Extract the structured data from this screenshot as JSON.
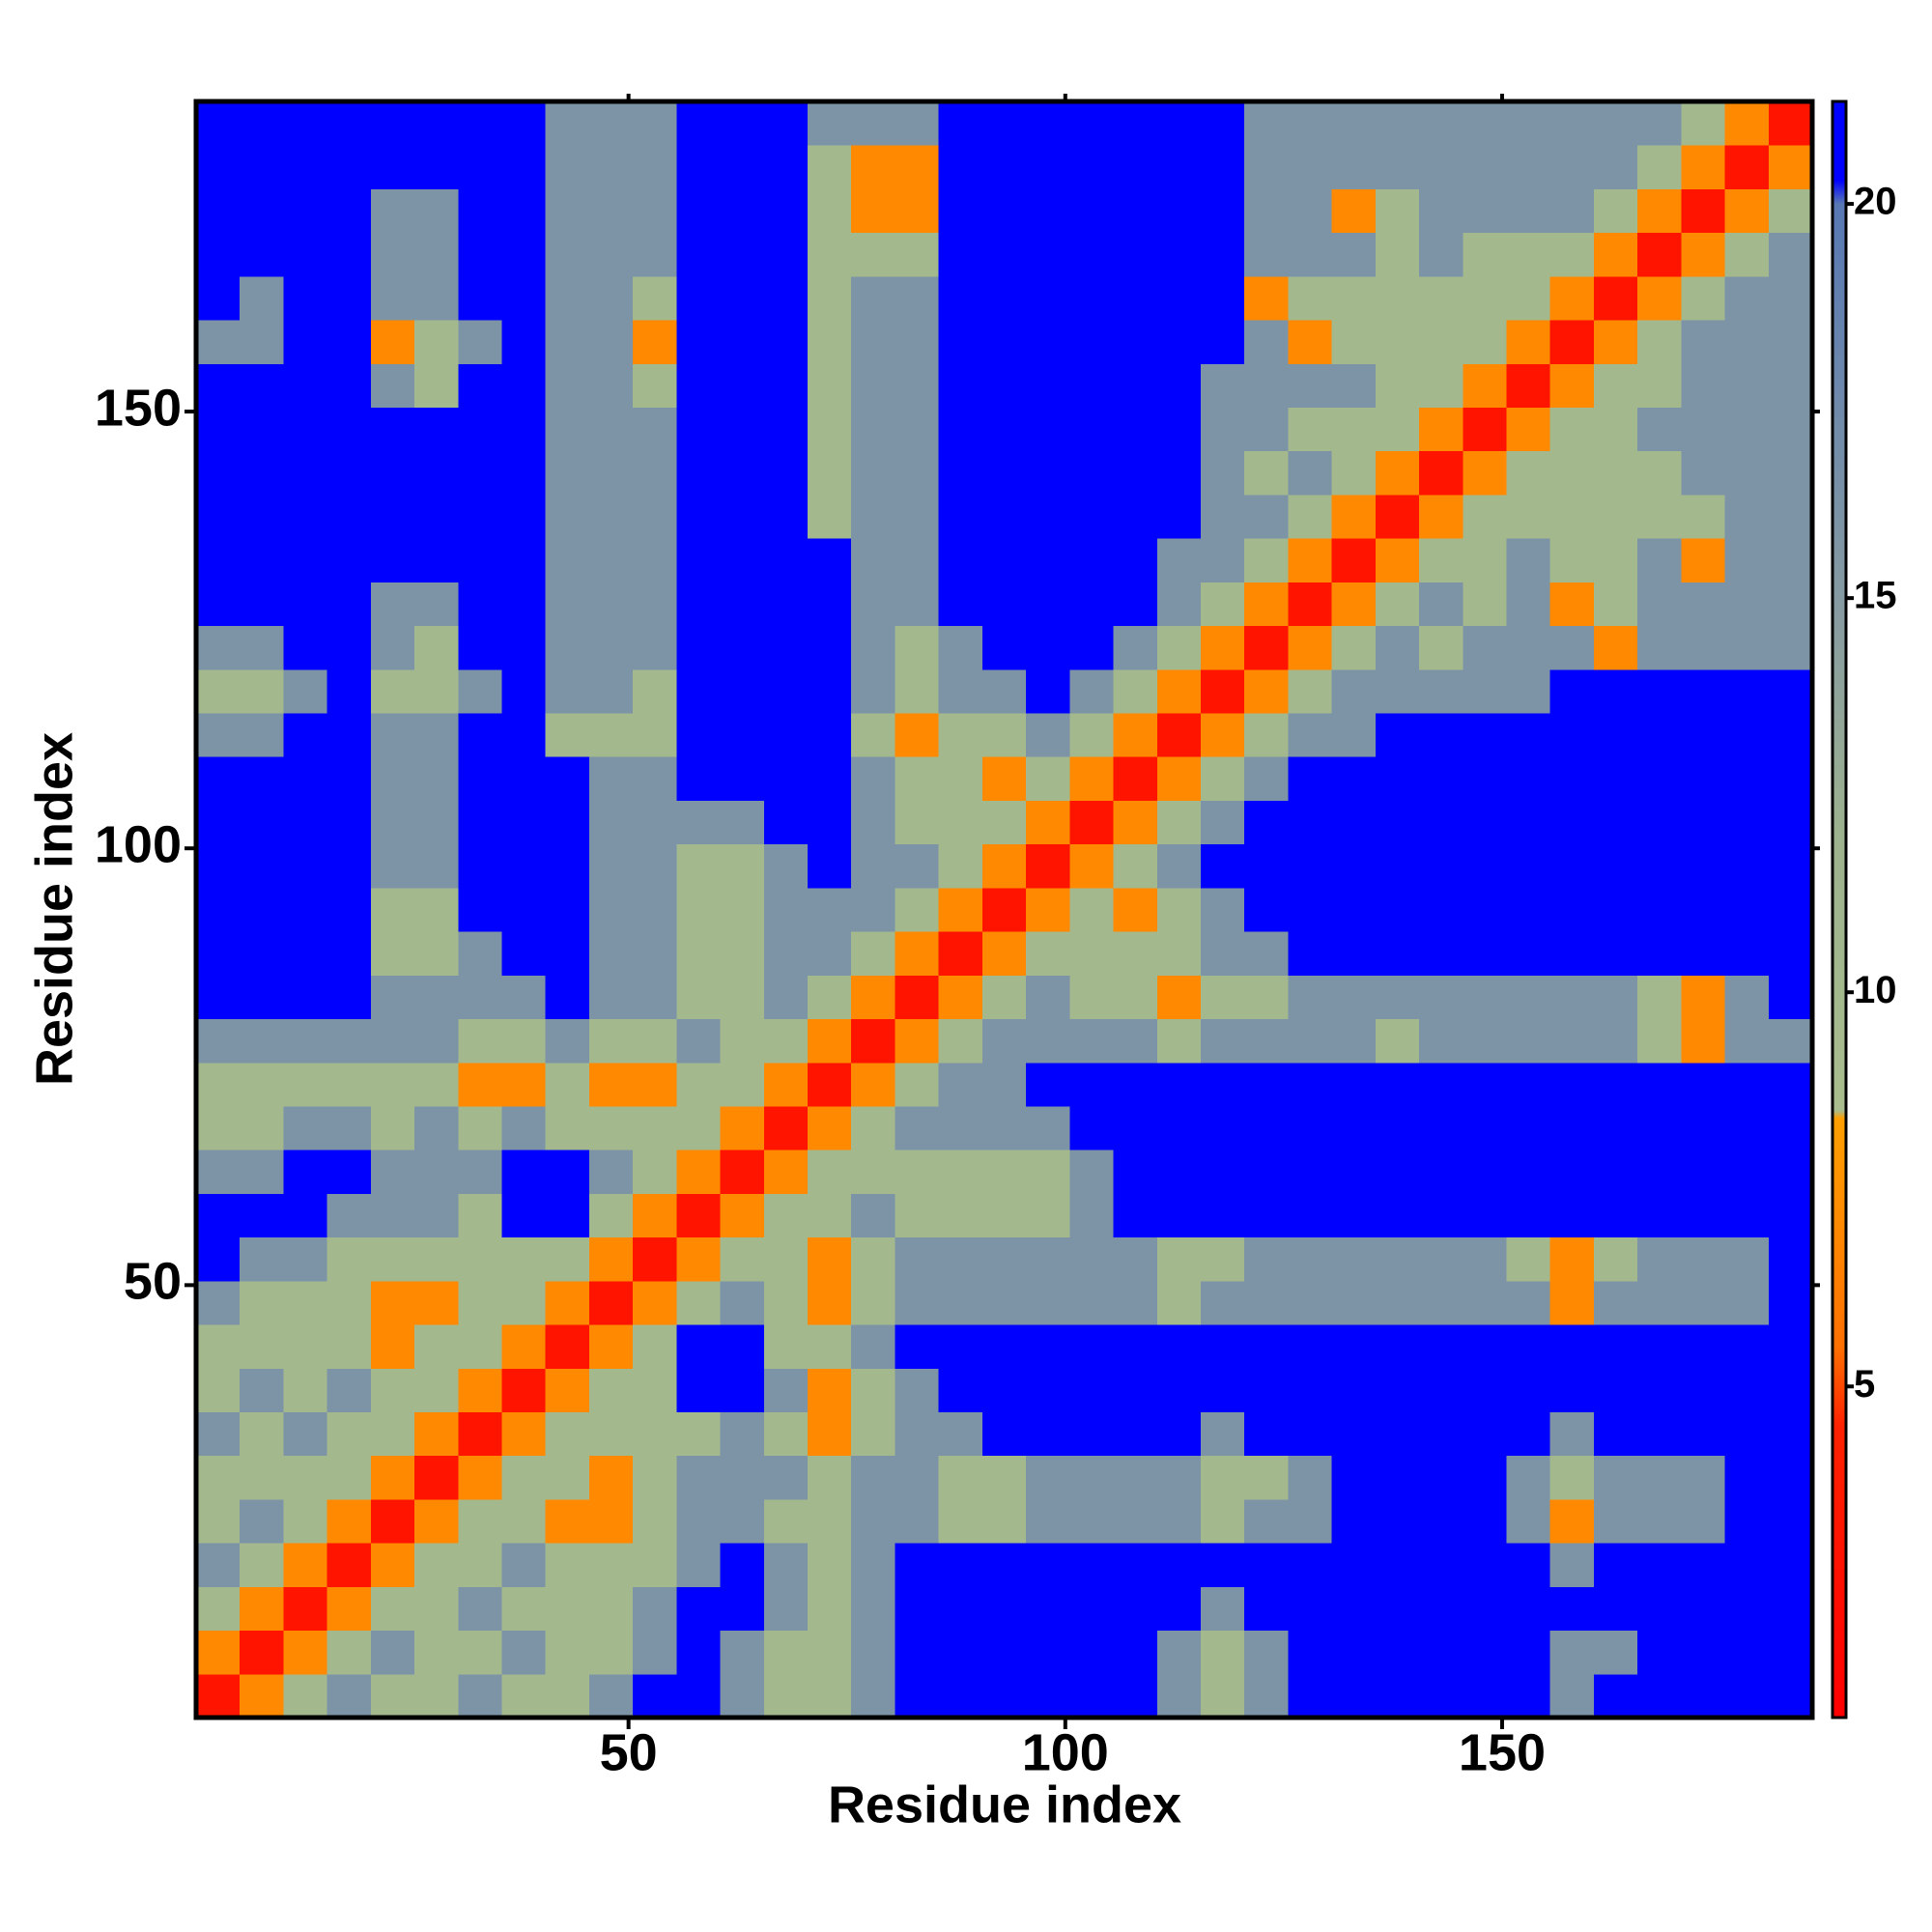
{
  "chart_data": {
    "type": "heatmap",
    "xlabel": "Residue index",
    "ylabel": "Residue index",
    "x": [
      3,
      8,
      13,
      18,
      23,
      28,
      33,
      38,
      43,
      48,
      53,
      58,
      63,
      68,
      73,
      78,
      83,
      88,
      93,
      98,
      103,
      108,
      113,
      118,
      123,
      128,
      133,
      138,
      143,
      148,
      153,
      158,
      163,
      168,
      173,
      178,
      183
    ],
    "y": [
      3,
      8,
      13,
      18,
      23,
      28,
      33,
      38,
      43,
      48,
      53,
      58,
      63,
      68,
      73,
      78,
      83,
      88,
      93,
      98,
      103,
      108,
      113,
      118,
      123,
      128,
      133,
      138,
      143,
      148,
      153,
      158,
      163,
      168,
      173,
      178,
      183
    ],
    "xlim": [
      0.5,
      185.5
    ],
    "ylim": [
      0.5,
      185.5
    ],
    "xticks": [
      50,
      100,
      150
    ],
    "yticks": [
      50,
      100,
      150
    ],
    "zlim": [
      0.8,
      21.3
    ],
    "zticks": [
      5,
      10,
      15,
      20
    ],
    "colorscale": [
      [
        0.8,
        "#ff0000"
      ],
      [
        4.5,
        "#ff2200"
      ],
      [
        5.5,
        "#ff7000"
      ],
      [
        8.4,
        "#ffa000"
      ],
      [
        8.5,
        "#a9bd8e"
      ],
      [
        12,
        "#9db28e"
      ],
      [
        14.5,
        "#8a9ea0"
      ],
      [
        20,
        "#5878b4"
      ],
      [
        20.3,
        "#0000ff"
      ],
      [
        21.3,
        "#0000ff"
      ]
    ],
    "z": [
      [
        3,
        7,
        10,
        16,
        10,
        10,
        16,
        10,
        10,
        16,
        21,
        21,
        16,
        10,
        10,
        16,
        21,
        21,
        21,
        21,
        21,
        21,
        16,
        10,
        16,
        21,
        21,
        21,
        21,
        21,
        21,
        16,
        21,
        21,
        21,
        21,
        21
      ],
      [
        7,
        3,
        7,
        10,
        16,
        10,
        10,
        16,
        10,
        10,
        16,
        21,
        16,
        10,
        10,
        16,
        21,
        21,
        21,
        21,
        21,
        21,
        16,
        10,
        16,
        21,
        21,
        21,
        21,
        21,
        21,
        16,
        16,
        21,
        21,
        21,
        21
      ],
      [
        10,
        7,
        3,
        7,
        10,
        10,
        16,
        10,
        10,
        10,
        16,
        21,
        21,
        16,
        10,
        16,
        21,
        21,
        21,
        21,
        21,
        21,
        21,
        16,
        21,
        21,
        21,
        21,
        21,
        21,
        21,
        21,
        21,
        21,
        21,
        21,
        21
      ],
      [
        16,
        10,
        7,
        3,
        7,
        10,
        10,
        16,
        10,
        10,
        10,
        16,
        21,
        16,
        10,
        16,
        21,
        21,
        21,
        21,
        21,
        21,
        21,
        21,
        21,
        21,
        21,
        21,
        21,
        21,
        21,
        16,
        21,
        21,
        21,
        21,
        21
      ],
      [
        10,
        16,
        10,
        7,
        3,
        7,
        10,
        10,
        7,
        7,
        10,
        16,
        16,
        10,
        10,
        16,
        16,
        10,
        10,
        16,
        16,
        16,
        16,
        10,
        16,
        16,
        21,
        21,
        21,
        21,
        16,
        7,
        16,
        16,
        16,
        21,
        21
      ],
      [
        10,
        10,
        10,
        10,
        7,
        3,
        7,
        10,
        10,
        7,
        10,
        16,
        16,
        16,
        10,
        16,
        16,
        10,
        10,
        16,
        16,
        16,
        16,
        10,
        10,
        16,
        21,
        21,
        21,
        21,
        16,
        10,
        16,
        16,
        16,
        21,
        21
      ],
      [
        16,
        10,
        16,
        10,
        10,
        7,
        3,
        7,
        10,
        10,
        10,
        10,
        16,
        10,
        7,
        10,
        16,
        16,
        21,
        21,
        21,
        21,
        21,
        16,
        21,
        21,
        21,
        21,
        21,
        21,
        21,
        16,
        21,
        21,
        21,
        21,
        21
      ],
      [
        10,
        16,
        10,
        16,
        10,
        10,
        7,
        3,
        7,
        10,
        10,
        21,
        21,
        16,
        7,
        10,
        16,
        21,
        21,
        21,
        21,
        21,
        21,
        21,
        21,
        21,
        21,
        21,
        21,
        21,
        21,
        21,
        21,
        21,
        21,
        21,
        21
      ],
      [
        10,
        10,
        10,
        10,
        7,
        10,
        10,
        7,
        3,
        7,
        10,
        21,
        21,
        10,
        10,
        16,
        21,
        21,
        21,
        21,
        21,
        21,
        21,
        21,
        21,
        21,
        21,
        21,
        21,
        21,
        21,
        21,
        21,
        21,
        21,
        21,
        21
      ],
      [
        16,
        10,
        10,
        10,
        7,
        7,
        10,
        10,
        7,
        3,
        7,
        10,
        16,
        10,
        7,
        10,
        16,
        16,
        16,
        16,
        16,
        16,
        10,
        16,
        16,
        16,
        16,
        16,
        16,
        16,
        16,
        7,
        16,
        16,
        16,
        16,
        21
      ],
      [
        21,
        16,
        16,
        10,
        10,
        10,
        10,
        10,
        10,
        7,
        3,
        7,
        10,
        10,
        7,
        10,
        16,
        16,
        16,
        16,
        16,
        16,
        10,
        10,
        16,
        16,
        16,
        16,
        16,
        16,
        10,
        7,
        10,
        16,
        16,
        16,
        21
      ],
      [
        21,
        21,
        21,
        16,
        16,
        16,
        10,
        21,
        21,
        10,
        7,
        3,
        7,
        10,
        10,
        16,
        10,
        10,
        10,
        10,
        16,
        21,
        21,
        21,
        21,
        21,
        21,
        21,
        21,
        21,
        21,
        21,
        21,
        21,
        21,
        21,
        21
      ],
      [
        16,
        16,
        21,
        21,
        16,
        16,
        16,
        21,
        21,
        16,
        10,
        7,
        3,
        7,
        10,
        10,
        10,
        10,
        10,
        10,
        16,
        21,
        21,
        21,
        21,
        21,
        21,
        21,
        21,
        21,
        21,
        21,
        21,
        21,
        21,
        21,
        21
      ],
      [
        10,
        10,
        16,
        16,
        10,
        16,
        10,
        16,
        10,
        10,
        10,
        10,
        7,
        3,
        7,
        10,
        16,
        16,
        16,
        16,
        21,
        21,
        21,
        21,
        21,
        21,
        21,
        21,
        21,
        21,
        21,
        21,
        21,
        21,
        21,
        21,
        21
      ],
      [
        10,
        10,
        10,
        10,
        10,
        10,
        7,
        7,
        10,
        7,
        7,
        10,
        10,
        7,
        3,
        7,
        10,
        16,
        16,
        21,
        21,
        21,
        21,
        21,
        21,
        21,
        21,
        21,
        21,
        21,
        21,
        21,
        21,
        21,
        21,
        21,
        21
      ],
      [
        16,
        16,
        16,
        16,
        16,
        16,
        10,
        10,
        16,
        10,
        10,
        16,
        10,
        10,
        7,
        3,
        7,
        10,
        16,
        16,
        16,
        16,
        10,
        16,
        16,
        16,
        16,
        10,
        16,
        16,
        16,
        16,
        16,
        10,
        7,
        16,
        16
      ],
      [
        21,
        21,
        21,
        21,
        16,
        16,
        16,
        16,
        21,
        16,
        16,
        10,
        10,
        16,
        10,
        7,
        3,
        7,
        10,
        16,
        10,
        10,
        7,
        10,
        10,
        16,
        16,
        16,
        16,
        16,
        16,
        16,
        16,
        10,
        7,
        16,
        21
      ],
      [
        21,
        21,
        21,
        21,
        10,
        10,
        16,
        21,
        21,
        16,
        16,
        10,
        10,
        16,
        16,
        10,
        7,
        3,
        7,
        10,
        10,
        10,
        10,
        16,
        16,
        21,
        21,
        21,
        21,
        21,
        21,
        21,
        21,
        21,
        21,
        21,
        21
      ],
      [
        21,
        21,
        21,
        21,
        10,
        10,
        21,
        21,
        21,
        16,
        16,
        10,
        10,
        16,
        16,
        16,
        10,
        7,
        3,
        7,
        10,
        7,
        10,
        16,
        21,
        21,
        21,
        21,
        21,
        21,
        21,
        21,
        21,
        21,
        21,
        21,
        21
      ],
      [
        21,
        21,
        21,
        21,
        16,
        16,
        21,
        21,
        21,
        16,
        16,
        10,
        10,
        16,
        21,
        16,
        16,
        10,
        7,
        3,
        7,
        10,
        16,
        21,
        21,
        21,
        21,
        21,
        21,
        21,
        21,
        21,
        21,
        21,
        21,
        21,
        21
      ],
      [
        21,
        21,
        21,
        21,
        16,
        16,
        21,
        21,
        21,
        16,
        16,
        16,
        16,
        21,
        21,
        16,
        10,
        10,
        10,
        7,
        3,
        7,
        10,
        16,
        21,
        21,
        21,
        21,
        21,
        21,
        21,
        21,
        21,
        21,
        21,
        21,
        21
      ],
      [
        21,
        21,
        21,
        21,
        16,
        16,
        21,
        21,
        21,
        16,
        16,
        21,
        21,
        21,
        21,
        16,
        10,
        10,
        7,
        10,
        7,
        3,
        7,
        10,
        16,
        21,
        21,
        21,
        21,
        21,
        21,
        21,
        21,
        21,
        21,
        21,
        21
      ],
      [
        16,
        16,
        21,
        21,
        16,
        16,
        21,
        21,
        10,
        10,
        10,
        21,
        21,
        21,
        21,
        10,
        7,
        10,
        10,
        16,
        10,
        7,
        3,
        7,
        10,
        16,
        16,
        21,
        21,
        21,
        21,
        21,
        21,
        21,
        21,
        21,
        21
      ],
      [
        10,
        10,
        16,
        21,
        10,
        10,
        16,
        21,
        16,
        16,
        10,
        21,
        21,
        21,
        21,
        16,
        10,
        16,
        16,
        21,
        16,
        10,
        7,
        3,
        7,
        10,
        16,
        16,
        16,
        16,
        16,
        21,
        21,
        21,
        21,
        21,
        21
      ],
      [
        16,
        16,
        21,
        21,
        16,
        10,
        21,
        21,
        16,
        16,
        16,
        21,
        21,
        21,
        21,
        16,
        10,
        16,
        21,
        21,
        21,
        16,
        10,
        7,
        3,
        7,
        10,
        16,
        10,
        16,
        16,
        16,
        7,
        16,
        16,
        16,
        16
      ],
      [
        21,
        21,
        21,
        21,
        16,
        16,
        21,
        21,
        16,
        16,
        16,
        21,
        21,
        21,
        21,
        16,
        16,
        21,
        21,
        21,
        21,
        21,
        16,
        10,
        7,
        3,
        7,
        10,
        16,
        10,
        16,
        7,
        10,
        16,
        16,
        16,
        16
      ],
      [
        21,
        21,
        21,
        21,
        21,
        21,
        21,
        21,
        16,
        16,
        16,
        21,
        21,
        21,
        21,
        16,
        16,
        21,
        21,
        21,
        21,
        21,
        16,
        16,
        10,
        7,
        3,
        7,
        10,
        10,
        16,
        10,
        10,
        16,
        7,
        16,
        16
      ],
      [
        21,
        21,
        21,
        21,
        21,
        21,
        21,
        21,
        16,
        16,
        16,
        21,
        21,
        21,
        10,
        16,
        16,
        21,
        21,
        21,
        21,
        21,
        21,
        16,
        16,
        10,
        7,
        3,
        7,
        10,
        10,
        10,
        10,
        10,
        10,
        16,
        16
      ],
      [
        21,
        21,
        21,
        21,
        21,
        21,
        21,
        21,
        16,
        16,
        16,
        21,
        21,
        21,
        10,
        16,
        16,
        21,
        21,
        21,
        21,
        21,
        21,
        16,
        10,
        16,
        10,
        7,
        3,
        7,
        10,
        10,
        10,
        10,
        16,
        16,
        16
      ],
      [
        21,
        21,
        21,
        21,
        21,
        21,
        21,
        21,
        16,
        16,
        16,
        21,
        21,
        21,
        10,
        16,
        16,
        21,
        21,
        21,
        21,
        21,
        21,
        16,
        16,
        10,
        10,
        10,
        7,
        3,
        7,
        10,
        10,
        16,
        16,
        16,
        16
      ],
      [
        21,
        21,
        21,
        21,
        16,
        10,
        21,
        21,
        16,
        16,
        10,
        21,
        21,
        21,
        10,
        16,
        16,
        21,
        21,
        21,
        21,
        21,
        21,
        16,
        16,
        16,
        16,
        10,
        10,
        7,
        3,
        7,
        10,
        10,
        16,
        16,
        16
      ],
      [
        16,
        16,
        21,
        21,
        7,
        10,
        16,
        21,
        16,
        16,
        7,
        21,
        21,
        21,
        10,
        16,
        16,
        21,
        21,
        21,
        21,
        21,
        21,
        21,
        16,
        7,
        10,
        10,
        10,
        10,
        7,
        3,
        7,
        10,
        16,
        16,
        16
      ],
      [
        21,
        16,
        21,
        21,
        16,
        16,
        21,
        21,
        16,
        16,
        10,
        21,
        21,
        21,
        10,
        16,
        16,
        21,
        21,
        21,
        21,
        21,
        21,
        21,
        7,
        10,
        10,
        10,
        10,
        10,
        10,
        7,
        3,
        7,
        10,
        16,
        16
      ],
      [
        21,
        21,
        21,
        21,
        16,
        16,
        21,
        21,
        16,
        16,
        16,
        21,
        21,
        21,
        10,
        10,
        10,
        21,
        21,
        21,
        21,
        21,
        21,
        21,
        16,
        16,
        16,
        10,
        16,
        10,
        10,
        10,
        7,
        3,
        7,
        10,
        16
      ],
      [
        21,
        21,
        21,
        21,
        16,
        16,
        21,
        21,
        16,
        16,
        16,
        21,
        21,
        21,
        10,
        7,
        7,
        21,
        21,
        21,
        21,
        21,
        21,
        21,
        16,
        16,
        7,
        10,
        16,
        16,
        16,
        16,
        10,
        7,
        3,
        7,
        10
      ],
      [
        21,
        21,
        21,
        21,
        21,
        21,
        21,
        21,
        16,
        16,
        16,
        21,
        21,
        21,
        10,
        7,
        7,
        21,
        21,
        21,
        21,
        21,
        21,
        21,
        16,
        16,
        16,
        16,
        16,
        16,
        16,
        16,
        16,
        10,
        7,
        3,
        7
      ],
      [
        21,
        21,
        21,
        21,
        21,
        21,
        21,
        21,
        16,
        16,
        16,
        21,
        21,
        21,
        16,
        16,
        16,
        21,
        21,
        21,
        21,
        21,
        21,
        21,
        16,
        16,
        16,
        16,
        16,
        16,
        16,
        16,
        16,
        16,
        10,
        7,
        3
      ]
    ]
  }
}
